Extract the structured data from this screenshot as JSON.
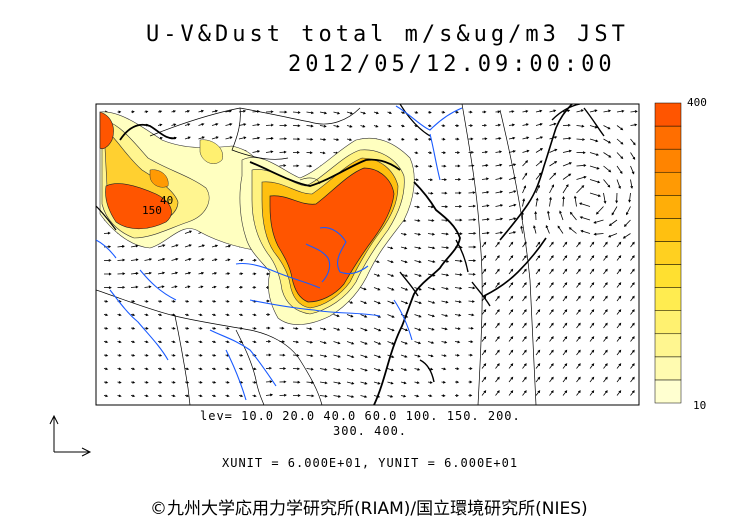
{
  "title": {
    "line1": "U-V&Dust total m/s&ug/m3 JST",
    "line2": "2012/05/12.09:00:00"
  },
  "colorbar": {
    "max_label": "400",
    "min_label": "10",
    "colors": [
      "#ffffd0",
      "#fffbb0",
      "#fff690",
      "#fff170",
      "#ffec50",
      "#ffe030",
      "#ffd020",
      "#ffc010",
      "#ffae08",
      "#ff9a04",
      "#ff8400",
      "#ff6e00",
      "#ff5500"
    ]
  },
  "contour_levels": {
    "line1": "lev= 10.0 20.0 40.0 60.0 100. 150. 200.",
    "line2": "300. 400."
  },
  "contour_labels": [
    "40",
    "150"
  ],
  "units_line": "XUNIT = 6.000E+01, YUNIT = 6.000E+01",
  "credit": "©九州大学応用力学研究所(RIAM)/国立環境研究所(NIES)",
  "colors": {
    "coast": "#000000",
    "river": "#1a5bff",
    "dust_max": "#ff5500",
    "dust_low": "#ffffb8"
  }
}
